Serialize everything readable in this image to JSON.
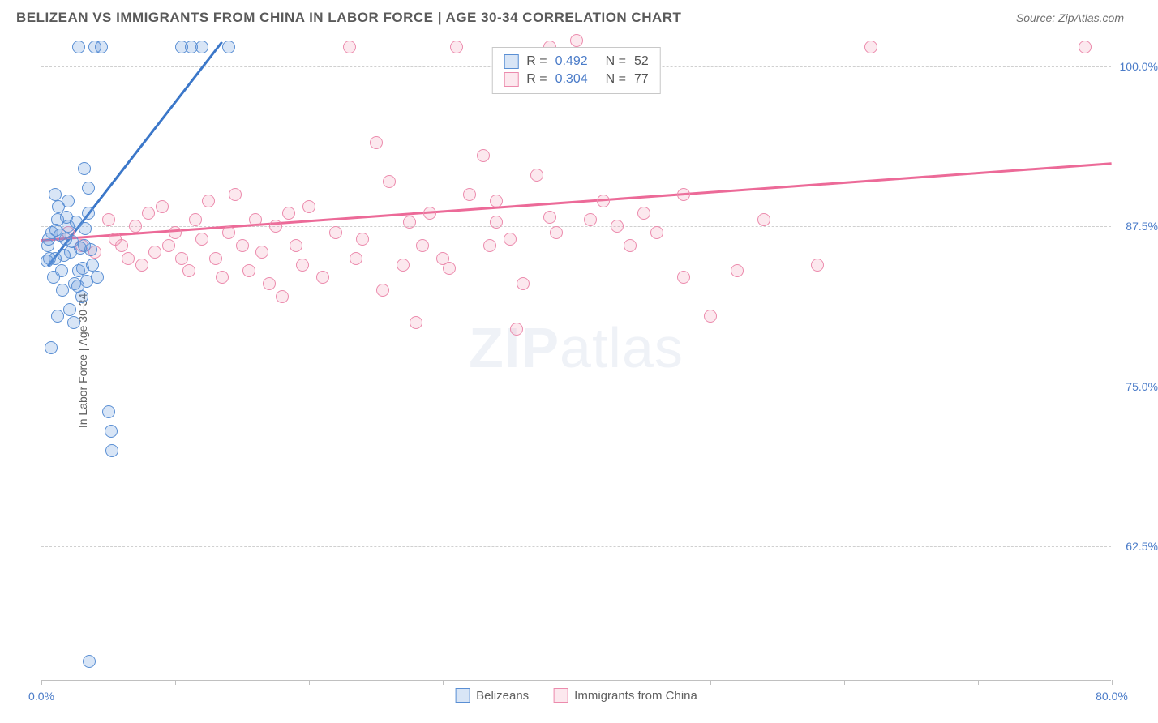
{
  "header": {
    "title": "BELIZEAN VS IMMIGRANTS FROM CHINA IN LABOR FORCE | AGE 30-34 CORRELATION CHART",
    "source": "Source: ZipAtlas.com"
  },
  "chart": {
    "type": "scatter",
    "y_axis_title": "In Labor Force | Age 30-34",
    "background_color": "#ffffff",
    "grid_color": "#d0d0d0",
    "axis_color": "#c0c0c0",
    "ylim": [
      52,
      102
    ],
    "xlim": [
      0,
      80
    ],
    "y_ticks": [
      62.5,
      75.0,
      87.5,
      100.0
    ],
    "y_tick_labels": [
      "62.5%",
      "75.0%",
      "87.5%",
      "100.0%"
    ],
    "x_ticks": [
      0,
      10,
      20,
      30,
      40,
      50,
      60,
      70,
      80
    ],
    "x_tick_labels": [
      "0.0%",
      "",
      "",
      "",
      "",
      "",
      "",
      "",
      "80.0%"
    ],
    "x_tick_label_color": "#4a7bc8",
    "y_tick_label_color": "#4a7bc8",
    "label_fontsize": 14
  },
  "stats": {
    "series1": {
      "r_label": "R =",
      "r_value": "0.492",
      "n_label": "N =",
      "n_value": "52"
    },
    "series2": {
      "r_label": "R =",
      "r_value": "0.304",
      "n_label": "N =",
      "n_value": "77"
    }
  },
  "legend": {
    "series1": "Belizeans",
    "series2": "Immigrants from China"
  },
  "watermark": {
    "prefix": "ZIP",
    "suffix": "atlas"
  },
  "series": {
    "blue": {
      "color_fill": "rgba(100,150,220,0.25)",
      "color_stroke": "#5a8fd4",
      "marker_size": 16,
      "trend": {
        "x1": 0.5,
        "y1": 84.5,
        "x2": 13.5,
        "y2": 102,
        "color": "#3b77c9",
        "width": 2.5
      },
      "points": [
        [
          0.5,
          86
        ],
        [
          0.8,
          87
        ],
        [
          1.0,
          85
        ],
        [
          1.2,
          88
        ],
        [
          1.5,
          84
        ],
        [
          1.8,
          86.5
        ],
        [
          2.0,
          87.5
        ],
        [
          2.2,
          85.5
        ],
        [
          2.5,
          83
        ],
        [
          2.8,
          84
        ],
        [
          3.0,
          82
        ],
        [
          3.2,
          86
        ],
        [
          3.5,
          88.5
        ],
        [
          1.0,
          90
        ],
        [
          1.3,
          89
        ],
        [
          0.6,
          85
        ],
        [
          0.9,
          83.5
        ],
        [
          1.6,
          82.5
        ],
        [
          2.1,
          81
        ],
        [
          2.4,
          80
        ],
        [
          4.0,
          101.5
        ],
        [
          4.5,
          101.5
        ],
        [
          10.5,
          101.5
        ],
        [
          11.2,
          101.5
        ],
        [
          12.0,
          101.5
        ],
        [
          14.0,
          101.5
        ],
        [
          2.8,
          101.5
        ],
        [
          3.2,
          92
        ],
        [
          3.5,
          90.5
        ],
        [
          0.7,
          78
        ],
        [
          3.8,
          84.5
        ],
        [
          4.2,
          83.5
        ],
        [
          1.1,
          87.2
        ],
        [
          1.4,
          86.8
        ],
        [
          1.7,
          85.2
        ],
        [
          1.9,
          88.2
        ],
        [
          2.3,
          86.3
        ],
        [
          2.6,
          87.8
        ],
        [
          2.9,
          85.8
        ],
        [
          3.1,
          84.2
        ],
        [
          3.4,
          83.2
        ],
        [
          0.4,
          84.8
        ],
        [
          0.55,
          86.5
        ],
        [
          5.0,
          73
        ],
        [
          5.2,
          71.5
        ],
        [
          5.3,
          70
        ],
        [
          3.6,
          53.5
        ],
        [
          1.2,
          80.5
        ],
        [
          2.0,
          89.5
        ],
        [
          2.7,
          82.8
        ],
        [
          3.3,
          87.3
        ],
        [
          3.7,
          85.7
        ]
      ]
    },
    "pink": {
      "color_fill": "rgba(240,140,170,0.2)",
      "color_stroke": "#ec8bad",
      "marker_size": 16,
      "trend": {
        "x1": 0,
        "y1": 86.5,
        "x2": 80,
        "y2": 92.5,
        "color": "#ec6a98",
        "width": 2.5
      },
      "points": [
        [
          2,
          87
        ],
        [
          3,
          86
        ],
        [
          4,
          85.5
        ],
        [
          5,
          88
        ],
        [
          5.5,
          86.5
        ],
        [
          6,
          86
        ],
        [
          6.5,
          85
        ],
        [
          7,
          87.5
        ],
        [
          7.5,
          84.5
        ],
        [
          8,
          88.5
        ],
        [
          8.5,
          85.5
        ],
        [
          9,
          89
        ],
        [
          9.5,
          86
        ],
        [
          10,
          87
        ],
        [
          10.5,
          85
        ],
        [
          11,
          84
        ],
        [
          11.5,
          88
        ],
        [
          12,
          86.5
        ],
        [
          12.5,
          89.5
        ],
        [
          13,
          85
        ],
        [
          13.5,
          83.5
        ],
        [
          14,
          87
        ],
        [
          14.5,
          90
        ],
        [
          15,
          86
        ],
        [
          15.5,
          84
        ],
        [
          16,
          88
        ],
        [
          16.5,
          85.5
        ],
        [
          17,
          83
        ],
        [
          17.5,
          87.5
        ],
        [
          18,
          82
        ],
        [
          18.5,
          88.5
        ],
        [
          19,
          86
        ],
        [
          19.5,
          84.5
        ],
        [
          20,
          89
        ],
        [
          21,
          83.5
        ],
        [
          22,
          87
        ],
        [
          23,
          101.5
        ],
        [
          23.5,
          85
        ],
        [
          24,
          86.5
        ],
        [
          25,
          94
        ],
        [
          25.5,
          82.5
        ],
        [
          26,
          91
        ],
        [
          27,
          84.5
        ],
        [
          28,
          80
        ],
        [
          28.5,
          86
        ],
        [
          29,
          88.5
        ],
        [
          30,
          85
        ],
        [
          31,
          101.5
        ],
        [
          32,
          90
        ],
        [
          33,
          93
        ],
        [
          34,
          89.5
        ],
        [
          33.5,
          86
        ],
        [
          35,
          86.5
        ],
        [
          35.5,
          79.5
        ],
        [
          36,
          83
        ],
        [
          37,
          91.5
        ],
        [
          38,
          101.5
        ],
        [
          38.5,
          87
        ],
        [
          40,
          102
        ],
        [
          41,
          88
        ],
        [
          42,
          89.5
        ],
        [
          43,
          87.5
        ],
        [
          44,
          86
        ],
        [
          45,
          88.5
        ],
        [
          46,
          87
        ],
        [
          48,
          90
        ],
        [
          50,
          80.5
        ],
        [
          52,
          84
        ],
        [
          54,
          88
        ],
        [
          58,
          84.5
        ],
        [
          48,
          83.5
        ],
        [
          38,
          88.2
        ],
        [
          34,
          87.8
        ],
        [
          30.5,
          84.2
        ],
        [
          27.5,
          87.8
        ],
        [
          62,
          101.5
        ],
        [
          78,
          101.5
        ]
      ]
    }
  }
}
